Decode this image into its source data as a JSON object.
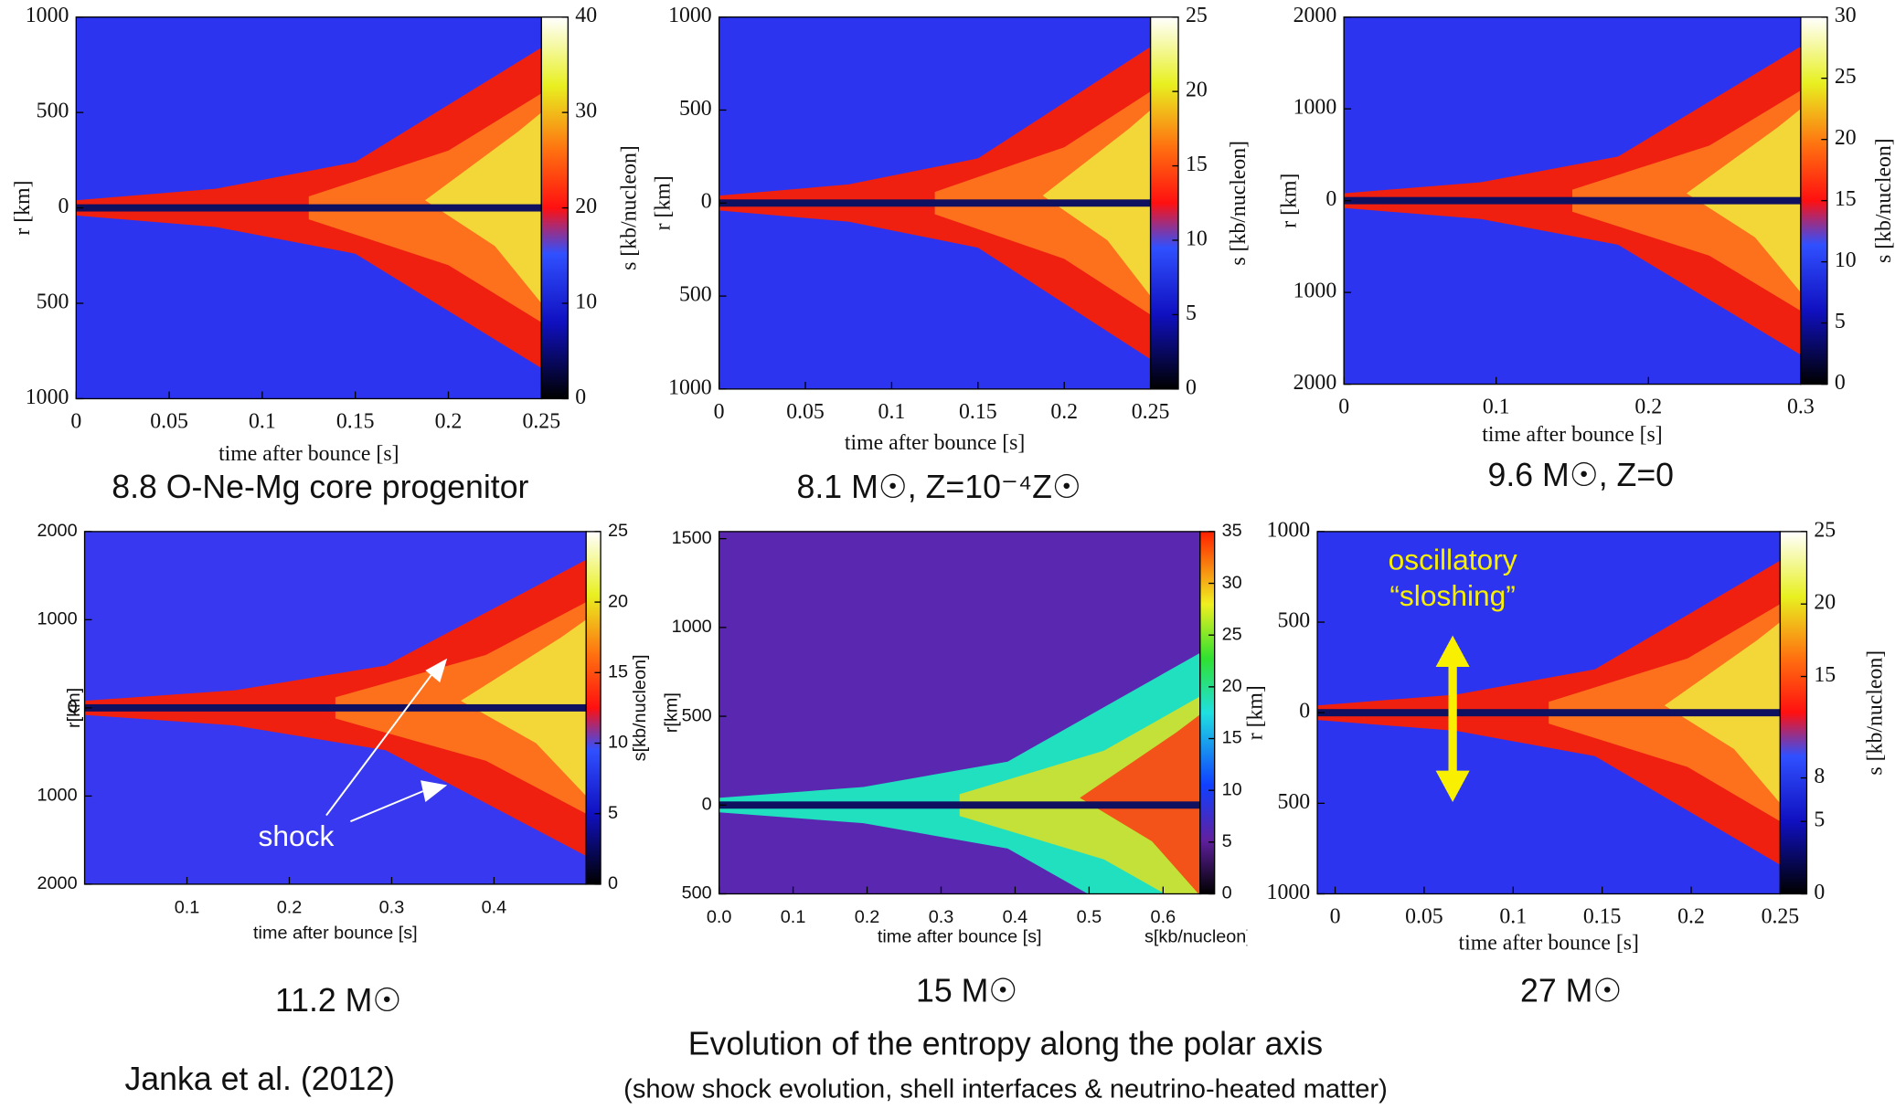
{
  "title": "Evolution of the entropy along the polar axis",
  "subtitle": "(show shock evolution, shell interfaces & neutrino-heated matter)",
  "credit": "Janka et al. (2012)",
  "chart_data": [
    {
      "type": "heatmap",
      "caption": "8.8 O-Ne-Mg core progenitor",
      "xlabel": "time after bounce [s]",
      "ylabel": "r [km]",
      "colorbar_label": "s [kb/nucleon]",
      "xlim": [
        0,
        0.25
      ],
      "xticks": [
        0,
        0.05,
        0.1,
        0.15,
        0.2,
        0.25
      ],
      "ylim": [
        -1000,
        1000
      ],
      "yticks": [
        {
          "value": -1000,
          "label": "1000"
        },
        {
          "value": -500,
          "label": "500"
        },
        0,
        500,
        1000
      ],
      "clim": [
        0,
        40
      ],
      "cticks": [
        0,
        10,
        20,
        30,
        40
      ]
    },
    {
      "type": "heatmap",
      "caption": "8.1 M☉, Z=10⁻⁴Z☉",
      "xlabel": "time after bounce [s]",
      "ylabel": "r [km]",
      "colorbar_label": "s [kb/nucleon]",
      "xlim": [
        0,
        0.25
      ],
      "xticks": [
        0,
        0.05,
        0.1,
        0.15,
        0.2,
        0.25
      ],
      "ylim": [
        -1000,
        1000
      ],
      "yticks": [
        {
          "value": -1000,
          "label": "1000"
        },
        {
          "value": -500,
          "label": "500"
        },
        0,
        500,
        1000
      ],
      "clim": [
        0,
        25
      ],
      "cticks": [
        0,
        5,
        10,
        15,
        20,
        25
      ]
    },
    {
      "type": "heatmap",
      "caption": "9.6 M☉, Z=0",
      "xlabel": "time after bounce [s]",
      "ylabel": "r [km]",
      "colorbar_label": "s [kb/nucleon]",
      "xlim": [
        0,
        0.3
      ],
      "xticks": [
        0,
        0.1,
        0.2,
        0.3
      ],
      "ylim": [
        -2000,
        2000
      ],
      "yticks": [
        {
          "value": -2000,
          "label": "2000"
        },
        {
          "value": -1000,
          "label": "1000"
        },
        0,
        1000,
        2000
      ],
      "clim": [
        0,
        30
      ],
      "cticks": [
        0,
        5,
        10,
        15,
        20,
        25,
        30
      ]
    },
    {
      "type": "heatmap",
      "caption": "11.2 M☉",
      "xlabel": "time after bounce [s]",
      "ylabel": "r[km]",
      "colorbar_label": "s[kb/nucleon]",
      "xlim": [
        0,
        0.49
      ],
      "xticks": [
        0.1,
        0.2,
        0.3,
        0.4
      ],
      "ylim": [
        -2000,
        2000
      ],
      "yticks": [
        {
          "value": -2000,
          "label": "2000"
        },
        {
          "value": -1000,
          "label": "1000"
        },
        0,
        1000,
        2000
      ],
      "clim": [
        0,
        25
      ],
      "cticks": [
        0,
        5,
        10,
        15,
        20,
        25
      ],
      "annotation": [
        "shock"
      ]
    },
    {
      "type": "heatmap",
      "caption": "15 M☉",
      "xlabel": "time after bounce [s]",
      "ylabel": "r[km]",
      "colorbar_label": "s[kb/nucleon]",
      "xlim": [
        0,
        0.65
      ],
      "xticks": [
        {
          "value": 0,
          "label": "0.0"
        },
        0.1,
        0.2,
        0.3,
        0.4,
        0.5,
        0.6
      ],
      "ylim": [
        -500,
        1540
      ],
      "yticks": [
        {
          "value": -500,
          "label": "500"
        },
        0,
        500,
        1000,
        1500
      ],
      "clim": [
        0,
        35
      ],
      "cticks": [
        0,
        5,
        10,
        15,
        20,
        25,
        30,
        35
      ]
    },
    {
      "type": "heatmap",
      "caption": "27 M☉",
      "xlabel": "time after bounce [s]",
      "ylabel": "r [km]",
      "colorbar_label": "s [kb/nucleon]",
      "xlim": [
        -0.01,
        0.25
      ],
      "xticks": [
        0,
        0.05,
        0.1,
        0.15,
        0.2,
        0.25
      ],
      "ylim": [
        -1000,
        1000
      ],
      "yticks": [
        {
          "value": -1000,
          "label": "1000"
        },
        {
          "value": -500,
          "label": "500"
        },
        0,
        500,
        1000
      ],
      "clim": [
        0,
        25
      ],
      "cticks": [
        0,
        5,
        8,
        15,
        20,
        25
      ],
      "annotation": [
        "oscillatory",
        "“sloshing”"
      ]
    }
  ]
}
